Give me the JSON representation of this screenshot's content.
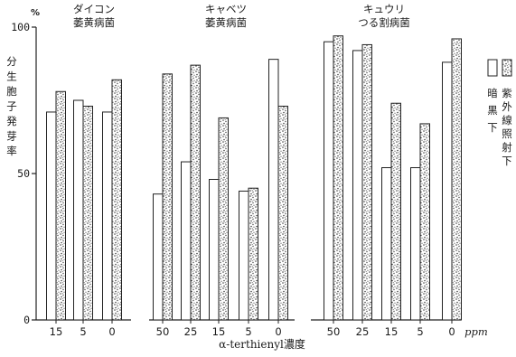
{
  "chart_data": {
    "type": "bar",
    "ylabel": "分生胞子発芽率",
    "yunit": "%",
    "xlabel": "α-terthienyl濃度",
    "xunit": "ppm",
    "ylim": [
      0,
      100
    ],
    "yticks": [
      0,
      50,
      100
    ],
    "legend": {
      "placement": "right",
      "dark": "暗黒下",
      "uv": "紫外線照射下"
    },
    "groups": [
      {
        "title": [
          "ダイコン",
          "萎黄病菌"
        ],
        "categories": [
          "15",
          "5",
          "0"
        ],
        "series": [
          {
            "key": "dark",
            "values": [
              71,
              75,
              71
            ]
          },
          {
            "key": "uv",
            "values": [
              78,
              73,
              82
            ]
          }
        ]
      },
      {
        "title": [
          "キャベツ",
          "萎黄病菌"
        ],
        "categories": [
          "50",
          "25",
          "15",
          "5",
          "0"
        ],
        "series": [
          {
            "key": "dark",
            "values": [
              43,
              54,
              48,
              44,
              89
            ]
          },
          {
            "key": "uv",
            "values": [
              84,
              87,
              69,
              45,
              73
            ]
          }
        ]
      },
      {
        "title": [
          "キュウリ",
          "つる割病菌"
        ],
        "categories": [
          "50",
          "25",
          "15",
          "5",
          "0"
        ],
        "series": [
          {
            "key": "dark",
            "values": [
              95,
              92,
              52,
              52,
              88
            ]
          },
          {
            "key": "uv",
            "values": [
              97,
              94,
              74,
              67,
              96
            ]
          }
        ]
      }
    ]
  }
}
